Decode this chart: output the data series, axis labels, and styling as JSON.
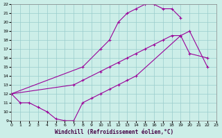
{
  "xlabel": "Windchill (Refroidissement éolien,°C)",
  "bg_color": "#cceee8",
  "grid_color": "#99cccc",
  "line_color": "#990099",
  "xlim": [
    0,
    23
  ],
  "ylim": [
    9,
    22
  ],
  "xticks": [
    0,
    1,
    2,
    3,
    4,
    5,
    6,
    7,
    8,
    9,
    10,
    11,
    12,
    13,
    14,
    15,
    16,
    17,
    18,
    19,
    20,
    21,
    22,
    23
  ],
  "yticks": [
    9,
    10,
    11,
    12,
    13,
    14,
    15,
    16,
    17,
    18,
    19,
    20,
    21,
    22
  ],
  "lines": [
    {
      "x": [
        0,
        8,
        10,
        11,
        12,
        13,
        14,
        15,
        16,
        17,
        18,
        19
      ],
      "y": [
        12,
        15,
        17,
        18,
        20,
        21,
        21.5,
        22,
        22,
        21.5,
        21.5,
        20.5
      ]
    },
    {
      "x": [
        0,
        7,
        8,
        10,
        11,
        12,
        13,
        14,
        15,
        16,
        17,
        18,
        19,
        20,
        22
      ],
      "y": [
        12,
        13,
        13.5,
        14.5,
        15,
        15.5,
        16,
        16.5,
        17,
        17.5,
        18,
        18.5,
        18.5,
        19,
        15
      ]
    },
    {
      "x": [
        0,
        1,
        2,
        3,
        4,
        5,
        6,
        7,
        8,
        9,
        10,
        11,
        12,
        13,
        14,
        19,
        20,
        22
      ],
      "y": [
        12,
        11,
        11,
        10.5,
        10,
        9.2,
        9,
        9,
        11,
        11.5,
        12,
        12.5,
        13,
        13.5,
        14,
        18.5,
        16.5,
        16
      ]
    }
  ]
}
